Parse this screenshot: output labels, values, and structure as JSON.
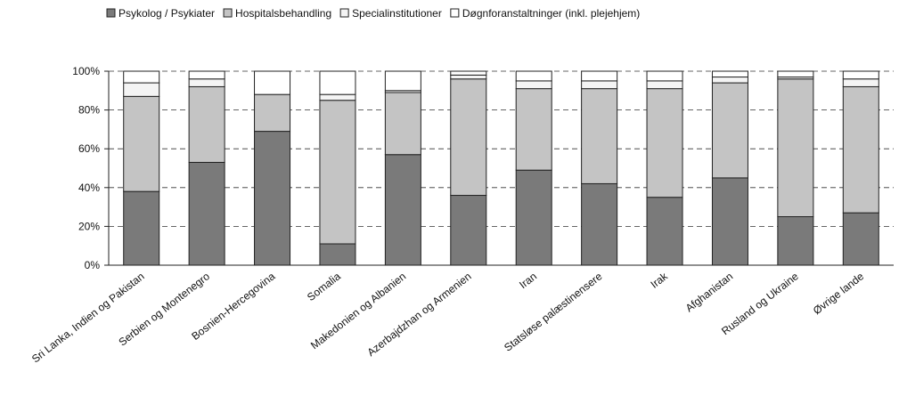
{
  "chart_data": {
    "type": "stacked_bar",
    "categories": [
      "Sri Lanka, Indien og Pakistan",
      "Serbien og Montenegro",
      "Bosnien-Hercegovina",
      "Somalia",
      "Makedonien og Albanien",
      "Azerbajdzhan og Armenien",
      "Iran",
      "Statsløse palæstinensere",
      "Irak",
      "Afghanistan",
      "Rusland og Ukraine",
      "Øvrige lande"
    ],
    "series": [
      {
        "name": "Psykolog / Psykiater",
        "color": "#7a7a7a",
        "values": [
          38,
          53,
          69,
          11,
          57,
          36,
          49,
          42,
          35,
          45,
          25,
          27
        ]
      },
      {
        "name": "Hospitalsbehandling",
        "color": "#c4c4c4",
        "values": [
          49,
          39,
          19,
          74,
          32,
          60,
          42,
          49,
          56,
          49,
          71,
          65
        ]
      },
      {
        "name": "Specialinstitutioner",
        "color": "#f4f4f4",
        "values": [
          7,
          4,
          0,
          3,
          1,
          2,
          4,
          4,
          4,
          3,
          1,
          4
        ]
      },
      {
        "name": "Døgnforanstaltninger (inkl. plejehjem)",
        "color": "#ffffff",
        "values": [
          6,
          4,
          12,
          12,
          10,
          2,
          5,
          5,
          5,
          3,
          3,
          4
        ]
      }
    ],
    "ylim": [
      0,
      100
    ],
    "yticks": [
      {
        "value": 0,
        "label": "0%"
      },
      {
        "value": 20,
        "label": "20%"
      },
      {
        "value": 40,
        "label": "40%"
      },
      {
        "value": 60,
        "label": "60%"
      },
      {
        "value": 80,
        "label": "80%"
      },
      {
        "value": 100,
        "label": "100%"
      }
    ],
    "grid": true
  }
}
